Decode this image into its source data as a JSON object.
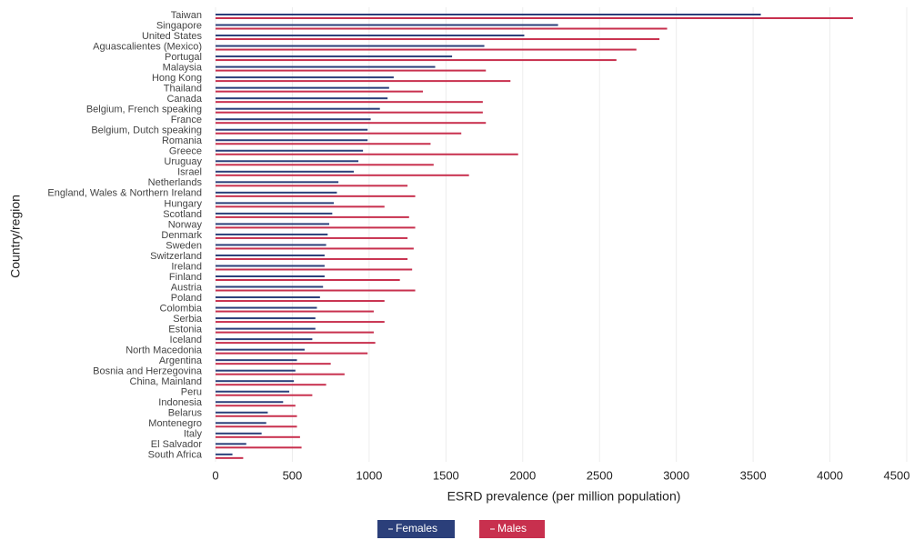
{
  "chart_data": {
    "type": "hbar",
    "x_label": "ESRD prevalence (per million population)",
    "y_label": "Country/region",
    "categories": [
      "Taiwan",
      "Singapore",
      "United States",
      "Aguascalientes (Mexico)",
      "Portugal",
      "Malaysia",
      "Hong Kong",
      "Thailand",
      "Canada",
      "Belgium, French speaking",
      "France",
      "Belgium, Dutch speaking",
      "Romania",
      "Greece",
      "Uruguay",
      "Israel",
      "Netherlands",
      "England, Wales & Northern Ireland",
      "Hungary",
      "Scotland",
      "Norway",
      "Denmark",
      "Sweden",
      "Switzerland",
      "Ireland",
      "Finland",
      "Austria",
      "Poland",
      "Colombia",
      "Serbia",
      "Estonia",
      "Iceland",
      "North Macedonia",
      "Argentina",
      "Bosnia and Herzegovina",
      "China, Mainland",
      "Peru",
      "Indonesia",
      "Belarus",
      "Montenegro",
      "Italy",
      "El Salvador",
      "South Africa"
    ],
    "series": [
      {
        "name": "Females",
        "color": "#2b3f7a",
        "values": [
          3550,
          2230,
          2010,
          1750,
          1540,
          1430,
          1160,
          1130,
          1120,
          1070,
          1010,
          990,
          990,
          960,
          930,
          900,
          800,
          790,
          770,
          760,
          740,
          730,
          720,
          710,
          710,
          710,
          700,
          680,
          660,
          650,
          650,
          630,
          580,
          530,
          520,
          510,
          480,
          440,
          340,
          330,
          300,
          200,
          110
        ]
      },
      {
        "name": "Males",
        "color": "#c8304e",
        "values": [
          4150,
          2940,
          2890,
          2740,
          2610,
          1760,
          1920,
          1350,
          1740,
          1740,
          1760,
          1600,
          1400,
          1970,
          1420,
          1650,
          1250,
          1300,
          1100,
          1260,
          1300,
          1250,
          1290,
          1250,
          1280,
          1200,
          1300,
          1100,
          1030,
          1100,
          1030,
          1040,
          990,
          750,
          840,
          720,
          630,
          520,
          530,
          530,
          550,
          560,
          180
        ]
      }
    ],
    "xlim": [
      0,
      4500
    ],
    "xticks": [
      0,
      500,
      1000,
      1500,
      2000,
      2500,
      3000,
      3500,
      4000,
      4500
    ],
    "grid": true
  }
}
